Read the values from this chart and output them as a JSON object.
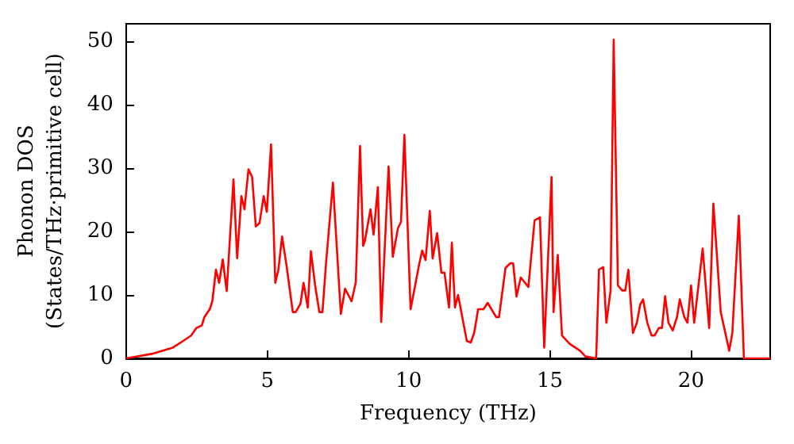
{
  "chart_data": {
    "type": "line",
    "xlabel": "Frequency (THz)",
    "ylabel": "Phonon DOS\n(States/THz·primitive cell)",
    "x": [
      0,
      0.9,
      1.65,
      2.02,
      2.3,
      2.49,
      2.68,
      2.77,
      2.96,
      3.05,
      3.18,
      3.29,
      3.42,
      3.56,
      3.8,
      3.93,
      4.08,
      4.19,
      4.33,
      4.46,
      4.59,
      4.72,
      4.87,
      4.98,
      5.13,
      5.28,
      5.39,
      5.52,
      5.67,
      5.9,
      6.0,
      6.17,
      6.28,
      6.43,
      6.54,
      6.69,
      6.84,
      6.95,
      7.08,
      7.32,
      7.6,
      7.75,
      7.98,
      8.13,
      8.28,
      8.39,
      8.45,
      8.65,
      8.76,
      8.91,
      9.03,
      9.29,
      9.44,
      9.62,
      9.73,
      9.85,
      10.07,
      10.22,
      10.37,
      10.48,
      10.6,
      10.75,
      10.85,
      11.01,
      11.16,
      11.27,
      11.43,
      11.53,
      11.64,
      11.75,
      11.9,
      12.06,
      12.2,
      12.32,
      12.46,
      12.65,
      12.8,
      13.1,
      13.2,
      13.43,
      13.6,
      13.7,
      13.82,
      13.97,
      14.24,
      14.46,
      14.65,
      14.8,
      15.06,
      15.13,
      15.28,
      15.43,
      15.7,
      16.07,
      16.26,
      16.64,
      16.74,
      16.89,
      17.0,
      17.15,
      17.26,
      17.41,
      17.56,
      17.67,
      17.78,
      17.94,
      18.08,
      18.2,
      18.3,
      18.45,
      18.6,
      18.71,
      18.86,
      18.97,
      19.08,
      19.2,
      19.35,
      19.5,
      19.6,
      19.76,
      19.87,
      20.0,
      20.11,
      20.41,
      20.64,
      20.79,
      21.05,
      21.35,
      21.46,
      21.69,
      21.87,
      22.8
    ],
    "series": [
      {
        "color": "#ff0000",
        "values": [
          0,
          0.7,
          1.7,
          2.75,
          3.6,
          4.8,
          5.2,
          6.5,
          7.75,
          9,
          14,
          11.9,
          15.6,
          10.6,
          28.2,
          15.8,
          25.6,
          23.5,
          29.8,
          28.6,
          20.8,
          21.3,
          25.6,
          23.1,
          33.75,
          11.9,
          14,
          19.2,
          14.9,
          7.3,
          7.3,
          8.6,
          11.9,
          8,
          16.9,
          11.5,
          7.3,
          7.3,
          15.2,
          27.7,
          7,
          11,
          9,
          12,
          33.5,
          17.75,
          18.5,
          23.5,
          19.5,
          27,
          5.75,
          30.25,
          16,
          20.5,
          21.5,
          35.25,
          7.75,
          11.25,
          14.75,
          17,
          15.5,
          23.25,
          15.75,
          19.75,
          13.5,
          13.5,
          8,
          18.25,
          8,
          10,
          6.5,
          2.75,
          2.5,
          4,
          7.75,
          7.75,
          8.75,
          6.5,
          6.5,
          14.25,
          15,
          15,
          9.75,
          12.75,
          11.25,
          21.75,
          22.25,
          1.7,
          28.6,
          7.3,
          16.3,
          3.6,
          2.3,
          1.2,
          0.3,
          0,
          14,
          14.4,
          5.6,
          10.7,
          50.25,
          11.5,
          10.7,
          10.7,
          14,
          4,
          5.6,
          8.5,
          9.3,
          5.6,
          3.6,
          3.6,
          4.8,
          4.8,
          9.8,
          5.6,
          4.4,
          6.5,
          9.3,
          6.5,
          5.6,
          11.5,
          5.6,
          17.3,
          4.8,
          24.4,
          7.3,
          1.2,
          4,
          22.5,
          0,
          0
        ]
      }
    ],
    "xlim": [
      0,
      22.8
    ],
    "ylim": [
      0,
      52.75
    ],
    "xticks": [
      0,
      5,
      10,
      15,
      20
    ],
    "yticks": [
      0,
      10,
      20,
      30,
      40,
      50
    ],
    "grid": false,
    "marker": "none",
    "line_style": "solid"
  }
}
